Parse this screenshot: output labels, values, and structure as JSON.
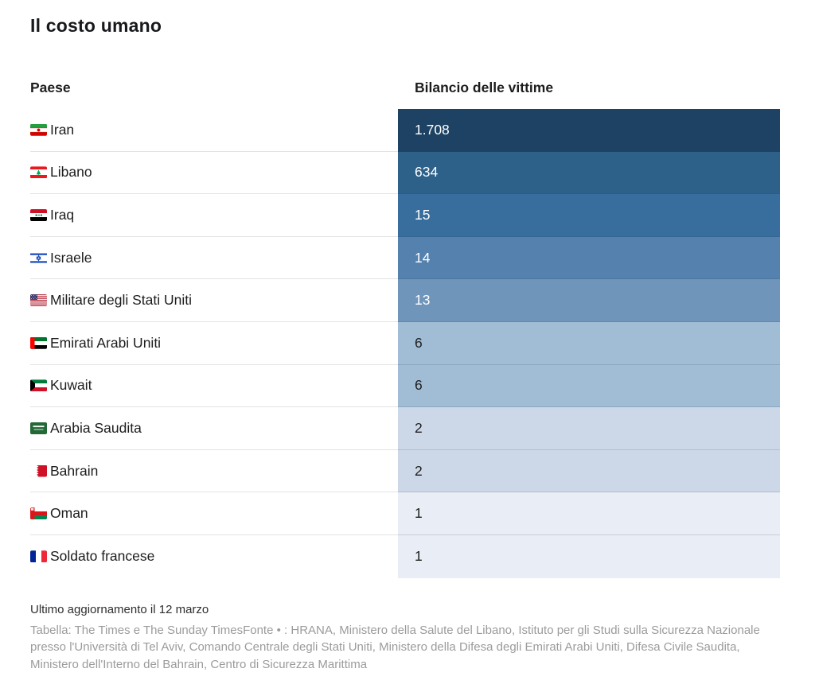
{
  "title": "Il costo umano",
  "table": {
    "columns": {
      "country": "Paese",
      "value": "Bilancio delle vittime"
    },
    "rows": [
      {
        "country": "Iran",
        "flag": "iran",
        "value": "1.708",
        "color": "#1e4263",
        "text_color": "#ffffff"
      },
      {
        "country": "Libano",
        "flag": "lebanon",
        "value": "634",
        "color": "#2e6189",
        "text_color": "#ffffff"
      },
      {
        "country": "Iraq",
        "flag": "iraq",
        "value": "15",
        "color": "#376e9d",
        "text_color": "#ffffff"
      },
      {
        "country": "Israele",
        "flag": "israel",
        "value": "14",
        "color": "#5481ad",
        "text_color": "#ffffff"
      },
      {
        "country": "Militare degli Stati Uniti",
        "flag": "usa",
        "value": "13",
        "color": "#7095ba",
        "text_color": "#ffffff"
      },
      {
        "country": "Emirati Arabi Uniti",
        "flag": "uae",
        "value": "6",
        "color": "#a1bdd5",
        "text_color": "#1d1d1d"
      },
      {
        "country": "Kuwait",
        "flag": "kuwait",
        "value": "6",
        "color": "#a1bdd5",
        "text_color": "#1d1d1d"
      },
      {
        "country": "Arabia Saudita",
        "flag": "saudi",
        "value": "2",
        "color": "#ccd8e8",
        "text_color": "#1d1d1d"
      },
      {
        "country": "Bahrain",
        "flag": "bahrain",
        "value": "2",
        "color": "#ccd8e8",
        "text_color": "#1d1d1d"
      },
      {
        "country": "Oman",
        "flag": "oman",
        "value": "1",
        "color": "#e9edf5",
        "text_color": "#1d1d1d"
      },
      {
        "country": "Soldato francese",
        "flag": "france",
        "value": "1",
        "color": "#e9edf5",
        "text_color": "#1d1d1d"
      }
    ]
  },
  "footer": {
    "updated": "Ultimo aggiornamento il 12 marzo",
    "source": "Tabella: The Times e The Sunday TimesFonte • : HRANA, Ministero della Salute del Libano, Istituto per gli Studi sulla Sicurezza Nazionale presso l'Università di Tel Aviv, Comando Centrale degli Stati Uniti, Ministero della Difesa degli Emirati Arabi Uniti, Difesa Civile Saudita, Ministero dell'Interno del Bahrain, Centro di Sicurezza Marittima"
  },
  "chart_data": {
    "type": "table",
    "title": "Il costo umano",
    "columns": [
      "Paese",
      "Bilancio delle vittime"
    ],
    "categories": [
      "Iran",
      "Libano",
      "Iraq",
      "Israele",
      "Militare degli Stati Uniti",
      "Emirati Arabi Uniti",
      "Kuwait",
      "Arabia Saudita",
      "Bahrain",
      "Oman",
      "Soldato francese"
    ],
    "values": [
      1708,
      634,
      15,
      14,
      13,
      6,
      6,
      2,
      2,
      1,
      1
    ],
    "value_format": "thousands separated by dot (it-IT)",
    "color_encoding": "sequential blue heatmap on value column, dark = high",
    "palette": [
      "#1e4263",
      "#2e6189",
      "#376e9d",
      "#5481ad",
      "#7095ba",
      "#a1bdd5",
      "#a1bdd5",
      "#ccd8e8",
      "#ccd8e8",
      "#e9edf5",
      "#e9edf5"
    ],
    "notes": [
      "Ultimo aggiornamento il 12 marzo"
    ],
    "credit": "Tabella: The Times e The Sunday Times",
    "source": "Fonte • : HRANA, Ministero della Salute del Libano, Istituto per gli Studi sulla Sicurezza Nazionale presso l'Università di Tel Aviv, Comando Centrale degli Stati Uniti, Ministero della Difesa degli Emirati Arabi Uniti, Difesa Civile Saudita, Ministero dell'Interno del Bahrain, Centro di Sicurezza Marittima"
  }
}
